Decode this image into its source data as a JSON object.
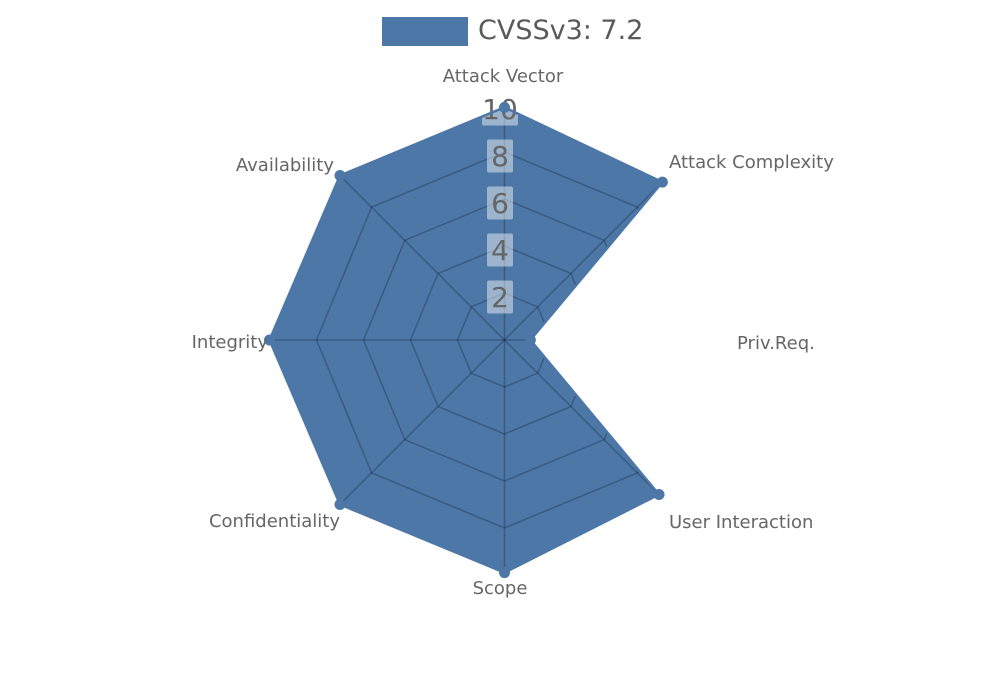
{
  "legend": {
    "label": "CVSSv3: 7.2"
  },
  "chart_data": {
    "type": "radar",
    "title": "CVSSv3: 7.2",
    "categories": [
      "Attack Vector",
      "Attack Complexity",
      "Priv.Req.",
      "User Interaction",
      "Scope",
      "Confidentiality",
      "Integrity",
      "Availability"
    ],
    "series": [
      {
        "name": "CVSSv3: 7.2",
        "values": [
          9.9,
          9.5,
          1.1,
          9.3,
          9.9,
          9.9,
          10,
          9.9
        ]
      }
    ],
    "radial_ticks": [
      2,
      4,
      6,
      8,
      10
    ],
    "radial_tick_labels": [
      "2",
      "4",
      "6",
      "8",
      "10"
    ],
    "rlim": [
      0,
      10
    ],
    "grid": true,
    "legend_position": "top-center",
    "colors": {
      "fill": "#4c77a7",
      "grid_line": "rgba(0,0,0,0.22)",
      "tick_box": "rgba(255,255,255,0.45)",
      "tick_text": "#666666",
      "label_text": "#666666",
      "legend_text": "#5a5a5a",
      "background": "#ffffff"
    }
  }
}
